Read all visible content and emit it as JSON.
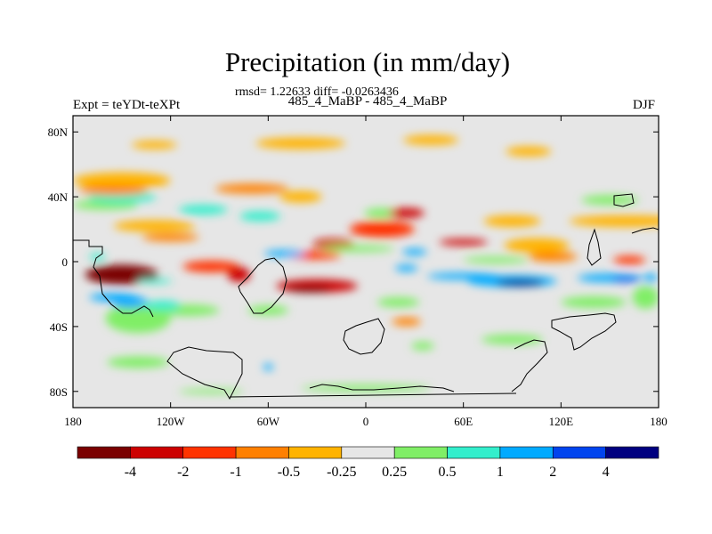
{
  "chart_data": {
    "type": "heatmap",
    "title": "Precipitation (in mm/day)",
    "stats_label": "rmsd= 1.22633 diff= -0.0263436",
    "subtitle": "485_4_MaBP - 485_4_MaBP",
    "left_label": "Expt = teYDt-teXPt",
    "right_label": "DJF",
    "xlim": [
      -180,
      180
    ],
    "ylim": [
      -90,
      90
    ],
    "x_ticks": [
      {
        "value": -180,
        "label": "180"
      },
      {
        "value": -120,
        "label": "120W"
      },
      {
        "value": -60,
        "label": "60W"
      },
      {
        "value": 0,
        "label": "0"
      },
      {
        "value": 60,
        "label": "60E"
      },
      {
        "value": 120,
        "label": "120E"
      },
      {
        "value": 180,
        "label": "180"
      }
    ],
    "y_ticks": [
      {
        "value": 80,
        "label": "80N"
      },
      {
        "value": 40,
        "label": "40N"
      },
      {
        "value": 0,
        "label": "0"
      },
      {
        "value": -40,
        "label": "40S"
      },
      {
        "value": -80,
        "label": "80S"
      }
    ],
    "levels": [
      {
        "label": "-4",
        "value": -4
      },
      {
        "label": "-2",
        "value": -2
      },
      {
        "label": "-1",
        "value": -1
      },
      {
        "label": "-0.5",
        "value": -0.5
      },
      {
        "label": "-0.25",
        "value": -0.25
      },
      {
        "label": "0.25",
        "value": 0.25
      },
      {
        "label": "0.5",
        "value": 0.5
      },
      {
        "label": "1",
        "value": 1
      },
      {
        "label": "2",
        "value": 2
      },
      {
        "label": "4",
        "value": 4
      }
    ],
    "colors": [
      "#7a0000",
      "#cc0000",
      "#ff3300",
      "#ff8000",
      "#ffb300",
      "#e6e6e6",
      "#80ee66",
      "#33eecc",
      "#00aaff",
      "#0044ee",
      "#000080"
    ],
    "background_color": "#e6e6e6",
    "features": [
      {
        "lon": 160,
        "lat": 25,
        "w": 70,
        "h": 7,
        "value": -0.35
      },
      {
        "lon": -150,
        "lat": 50,
        "w": 60,
        "h": 10,
        "value": -0.35
      },
      {
        "lon": -130,
        "lat": 22,
        "w": 50,
        "h": 7,
        "value": -0.35
      },
      {
        "lon": -40,
        "lat": 40,
        "w": 26,
        "h": 7,
        "value": -0.35
      },
      {
        "lon": -40,
        "lat": 73,
        "w": 55,
        "h": 7,
        "value": -0.35
      },
      {
        "lon": -130,
        "lat": 72,
        "w": 28,
        "h": 5,
        "value": -0.35
      },
      {
        "lon": 40,
        "lat": 75,
        "w": 34,
        "h": 6,
        "value": -0.35
      },
      {
        "lon": 100,
        "lat": 68,
        "w": 28,
        "h": 6,
        "value": -0.35
      },
      {
        "lon": 105,
        "lat": 10,
        "w": 40,
        "h": 9,
        "value": -0.35
      },
      {
        "lon": 150,
        "lat": 38,
        "w": 35,
        "h": 6,
        "value": 0.35
      },
      {
        "lon": -160,
        "lat": 35,
        "w": 40,
        "h": 6,
        "value": 0.35
      },
      {
        "lon": 10,
        "lat": 30,
        "w": 22,
        "h": 6,
        "value": 0.35
      },
      {
        "lon": 90,
        "lat": 25,
        "w": 35,
        "h": 7,
        "value": -0.35
      },
      {
        "lon": -150,
        "lat": 40,
        "w": 42,
        "h": 7,
        "value": 0.7
      },
      {
        "lon": -100,
        "lat": 32,
        "w": 30,
        "h": 6,
        "value": 0.7
      },
      {
        "lon": -65,
        "lat": 28,
        "w": 25,
        "h": 6,
        "value": 0.7
      },
      {
        "lon": -155,
        "lat": 44,
        "w": 42,
        "h": 6,
        "value": -0.7
      },
      {
        "lon": -70,
        "lat": 45,
        "w": 45,
        "h": 6,
        "value": -0.7
      },
      {
        "lon": -140,
        "lat": -35,
        "w": 40,
        "h": 18,
        "value": 0.35
      },
      {
        "lon": -145,
        "lat": -25,
        "w": 22,
        "h": 7,
        "value": 1.5
      },
      {
        "lon": -110,
        "lat": -30,
        "w": 40,
        "h": 7,
        "value": 0.35
      },
      {
        "lon": -60,
        "lat": -30,
        "w": 25,
        "h": 6,
        "value": 0.35
      },
      {
        "lon": 20,
        "lat": -25,
        "w": 26,
        "h": 6,
        "value": 0.35
      },
      {
        "lon": 140,
        "lat": -25,
        "w": 40,
        "h": 7,
        "value": 0.35
      },
      {
        "lon": 90,
        "lat": -48,
        "w": 38,
        "h": 6,
        "value": 0.35
      },
      {
        "lon": -140,
        "lat": -62,
        "w": 38,
        "h": 7,
        "value": 0.35
      },
      {
        "lon": 0,
        "lat": -78,
        "w": 80,
        "h": 4,
        "value": 0.35
      },
      {
        "lon": -95,
        "lat": -80,
        "w": 40,
        "h": 3,
        "value": 0.35
      },
      {
        "lon": -60,
        "lat": -65,
        "w": 6,
        "h": 4,
        "value": 1.5
      },
      {
        "lon": 35,
        "lat": -52,
        "w": 14,
        "h": 5,
        "value": 0.35
      },
      {
        "lon": 172,
        "lat": -22,
        "w": 16,
        "h": 14,
        "value": 0.35
      },
      {
        "lon": -150,
        "lat": -8,
        "w": 45,
        "h": 12,
        "value": -4.5
      },
      {
        "lon": -95,
        "lat": -3,
        "w": 35,
        "h": 7,
        "value": -1.5
      },
      {
        "lon": -78,
        "lat": -8,
        "w": 14,
        "h": 9,
        "value": -3
      },
      {
        "lon": -120,
        "lat": 15,
        "w": 35,
        "h": 5,
        "value": -0.75
      },
      {
        "lon": -32,
        "lat": 4,
        "w": 34,
        "h": 5,
        "value": -1.5
      },
      {
        "lon": -20,
        "lat": 11,
        "w": 25,
        "h": 6,
        "value": -3
      },
      {
        "lon": -30,
        "lat": -15,
        "w": 50,
        "h": 8,
        "value": -3
      },
      {
        "lon": -35,
        "lat": -17,
        "w": 28,
        "h": 4,
        "value": -4.5
      },
      {
        "lon": 10,
        "lat": 20,
        "w": 40,
        "h": 10,
        "value": -1.5
      },
      {
        "lon": 25,
        "lat": 30,
        "w": 22,
        "h": 6,
        "value": -3
      },
      {
        "lon": 60,
        "lat": 12,
        "w": 30,
        "h": 4,
        "value": -3
      },
      {
        "lon": 115,
        "lat": 3,
        "w": 30,
        "h": 6,
        "value": -0.75
      },
      {
        "lon": 162,
        "lat": 1,
        "w": 20,
        "h": 5,
        "value": -1.5
      },
      {
        "lon": 25,
        "lat": -37,
        "w": 18,
        "h": 5,
        "value": -0.75
      },
      {
        "lon": -130,
        "lat": -12,
        "w": 22,
        "h": 3,
        "value": 0.7
      },
      {
        "lon": -155,
        "lat": -22,
        "w": 30,
        "h": 5,
        "value": 1.5
      },
      {
        "lon": -125,
        "lat": -27,
        "w": 22,
        "h": 6,
        "value": 0.7
      },
      {
        "lon": -165,
        "lat": 3,
        "w": 10,
        "h": 4,
        "value": 0.7
      },
      {
        "lon": -50,
        "lat": 5,
        "w": 25,
        "h": 4,
        "value": 1.5
      },
      {
        "lon": -5,
        "lat": 8,
        "w": 45,
        "h": 4,
        "value": 0.35
      },
      {
        "lon": 30,
        "lat": 6,
        "w": 15,
        "h": 4,
        "value": 1.5
      },
      {
        "lon": 80,
        "lat": 1,
        "w": 40,
        "h": 4,
        "value": 0.35
      },
      {
        "lon": 25,
        "lat": -4,
        "w": 14,
        "h": 4,
        "value": 1.5
      },
      {
        "lon": 60,
        "lat": -9,
        "w": 45,
        "h": 4,
        "value": 1.5
      },
      {
        "lon": 90,
        "lat": -12,
        "w": 55,
        "h": 7,
        "value": 1.5
      },
      {
        "lon": 95,
        "lat": -13,
        "w": 30,
        "h": 4,
        "value": 4.5
      },
      {
        "lon": 150,
        "lat": -10,
        "w": 40,
        "h": 5,
        "value": 1.5
      },
      {
        "lon": 160,
        "lat": -11,
        "w": 18,
        "h": 3,
        "value": 3
      },
      {
        "lon": 175,
        "lat": -10,
        "w": 8,
        "h": 5,
        "value": 1.5
      }
    ]
  }
}
